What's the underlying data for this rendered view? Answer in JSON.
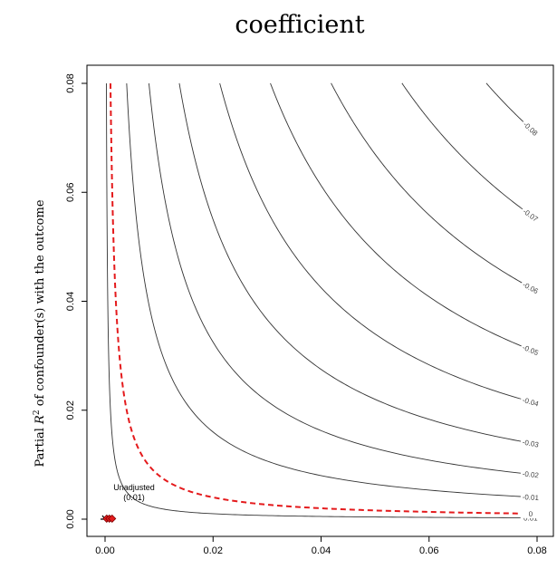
{
  "chart_data": {
    "type": "contour",
    "title": "coefficient",
    "ylabel_prefix": "Partial ",
    "ylabel_var": "R",
    "ylabel_sup": "2",
    "ylabel_suffix": " of confounder(s) with the outcome",
    "xlim": [
      0,
      0.08
    ],
    "ylim": [
      0,
      0.08
    ],
    "x_ticks": [
      "0.00",
      "0.02",
      "0.04",
      "0.06",
      "0.08"
    ],
    "y_ticks": [
      "0.00",
      "0.02",
      "0.04",
      "0.06",
      "0.08"
    ],
    "grid": false,
    "contours": [
      {
        "label": "0.01",
        "k": 2e-05
      },
      {
        "label": "0",
        "k": 8e-05,
        "critical": true,
        "color": "#e41a1c"
      },
      {
        "label": "-0.01",
        "k": 0.00032
      },
      {
        "label": "-0.02",
        "k": 0.00065
      },
      {
        "label": "-0.03",
        "k": 0.0011
      },
      {
        "label": "-0.04",
        "k": 0.0017
      },
      {
        "label": "-0.05",
        "k": 0.00245
      },
      {
        "label": "-0.06",
        "k": 0.00335
      },
      {
        "label": "-0.07",
        "k": 0.0044
      },
      {
        "label": "-0.08",
        "k": 0.00565
      }
    ],
    "unadjusted": {
      "label": "Unadjusted",
      "value_label": "(0.01)",
      "x": 0,
      "y": 0
    },
    "benchmarks": [
      {
        "x": 0.0003,
        "y": 0.0001
      },
      {
        "x": 0.0008,
        "y": 0.0001
      },
      {
        "x": 0.0013,
        "y": 0.0001
      }
    ]
  }
}
